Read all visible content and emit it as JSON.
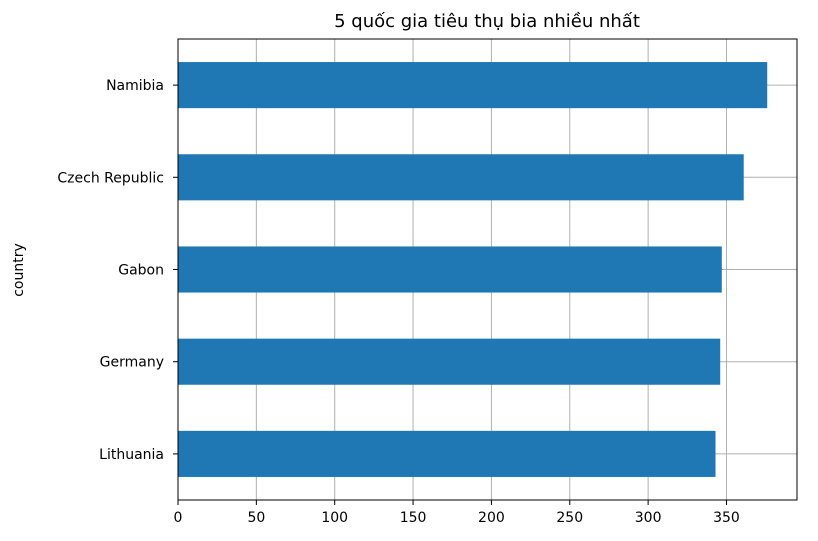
{
  "chart_data": {
    "type": "bar",
    "orientation": "horizontal",
    "title": "5 quốc gia tiêu thụ bia nhiều nhất",
    "xlabel": "",
    "ylabel": "country",
    "categories": [
      "Namibia",
      "Czech Republic",
      "Gabon",
      "Germany",
      "Lithuania"
    ],
    "values": [
      376,
      361,
      347,
      346,
      343
    ],
    "xlim": [
      0,
      395
    ],
    "xticks": [
      "0",
      "50",
      "100",
      "150",
      "200",
      "250",
      "300",
      "350"
    ],
    "grid": true,
    "bar_color": "#1f77b4"
  }
}
